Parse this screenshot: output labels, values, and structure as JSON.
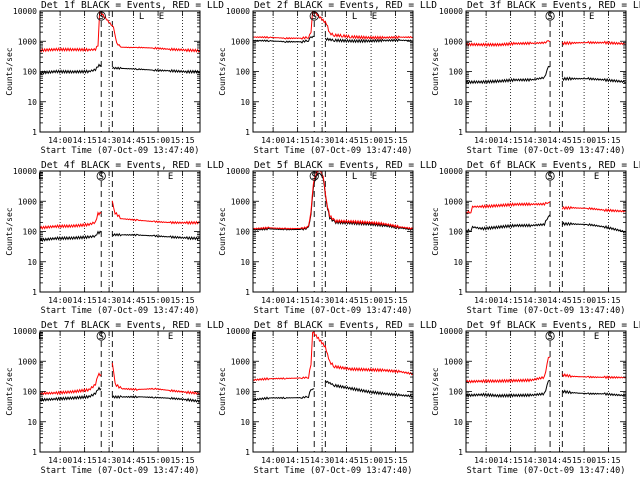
{
  "figure": {
    "ylabel": "Counts/sec",
    "xlabel": "Start Time (07-Oct-09 13:47:40)",
    "x_tick_labels": [
      "14:00",
      "14:15",
      "14:30",
      "14:45",
      "15:00",
      "15:15"
    ],
    "y_tick_labels": [
      "1",
      "10",
      "100",
      "1000",
      "10000"
    ],
    "colors": {
      "events": "#000000",
      "lld": "#ff0000",
      "axes": "#000000",
      "background": "#ffffff"
    }
  },
  "chart_data": [
    {
      "type": "line",
      "title": "Det 1f BLACK = Events, RED = LLD",
      "x_unit": "minutes after 13:47:40",
      "yscale": "log",
      "xlim": [
        0,
        98
      ],
      "ylim": [
        1,
        10000
      ],
      "gap": [
        37.5,
        44.3
      ],
      "markers": [
        "S",
        "L",
        "E"
      ],
      "marker_x": [
        37.5,
        62.2,
        74.4
      ],
      "vlines_dotted": [
        12.33,
        27.33,
        42.33,
        57.33,
        72.33,
        87.33
      ],
      "vlines_dashed": [
        37.5,
        44.3
      ],
      "series": [
        {
          "name": "Events",
          "color": "#000000",
          "x": [
            0,
            10,
            20,
            30,
            34,
            35.5,
            37.5,
            44.3,
            50,
            60,
            70,
            80,
            90,
            98
          ],
          "y": [
            90,
            95,
            92,
            100,
            120,
            160,
            170,
            125,
            120,
            118,
            115,
            112,
            100,
            95
          ]
        },
        {
          "name": "LLD",
          "color": "#ff0000",
          "x": [
            0,
            10,
            20,
            30,
            34,
            35.5,
            36.5,
            39,
            41,
            43,
            45,
            47,
            50,
            55,
            60,
            70,
            80,
            90,
            98
          ],
          "y": [
            500,
            510,
            505,
            520,
            560,
            800,
            10000,
            10000,
            10000,
            9000,
            3000,
            900,
            650,
            600,
            590,
            580,
            560,
            540,
            500
          ]
        }
      ]
    },
    {
      "type": "line",
      "title": "Det 2f BLACK = Events, RED = LLD",
      "x_unit": "minutes after 13:47:40",
      "yscale": "log",
      "xlim": [
        0,
        98
      ],
      "ylim": [
        1,
        10000
      ],
      "gap": [
        37.5,
        44.3
      ],
      "markers": [
        "S",
        "L",
        "E"
      ],
      "marker_x": [
        37.5,
        62.2,
        74.4
      ],
      "vlines_dotted": [
        12.33,
        27.33,
        42.33,
        57.33,
        72.33,
        87.33
      ],
      "vlines_dashed": [
        37.5,
        44.3
      ],
      "series": [
        {
          "name": "Events",
          "color": "#000000",
          "x": [
            0,
            10,
            20,
            30,
            34,
            35.5,
            37.5,
            44.3,
            50,
            60,
            70,
            80,
            90,
            98
          ],
          "y": [
            1000,
            1010,
            1000,
            1020,
            1100,
            1300,
            1350,
            1150,
            1100,
            1080,
            1060,
            1040,
            1020,
            1000
          ]
        },
        {
          "name": "LLD",
          "color": "#ff0000",
          "x": [
            0,
            10,
            20,
            30,
            34,
            35.5,
            36.5,
            39,
            41,
            43,
            45,
            47,
            50,
            55,
            60,
            70,
            80,
            90,
            98
          ],
          "y": [
            1300,
            1320,
            1300,
            1350,
            1400,
            1800,
            10000,
            10000,
            10000,
            9000,
            4000,
            1800,
            1500,
            1450,
            1420,
            1400,
            1380,
            1350,
            1300
          ]
        }
      ]
    },
    {
      "type": "line",
      "title": "Det 3f BLACK = Events, RED = LLD",
      "x_unit": "minutes after 13:47:40",
      "yscale": "log",
      "xlim": [
        0,
        98
      ],
      "ylim": [
        1,
        10000
      ],
      "gap": [
        51.5,
        59.0
      ],
      "markers": [
        "S",
        "E"
      ],
      "marker_x": [
        51.5,
        77.0
      ],
      "vlines_dotted": [
        12.33,
        27.33,
        42.33,
        57.33,
        72.33,
        87.33
      ],
      "vlines_dashed": [
        51.5,
        59.0
      ],
      "series": [
        {
          "name": "Events",
          "color": "#000000",
          "x": [
            0,
            10,
            20,
            30,
            40,
            48,
            50.5,
            51.5,
            59,
            65,
            75,
            85,
            98
          ],
          "y": [
            45,
            48,
            50,
            52,
            50,
            60,
            140,
            150,
            60,
            58,
            55,
            50,
            45
          ]
        },
        {
          "name": "LLD",
          "color": "#ff0000",
          "x": [
            0,
            10,
            20,
            30,
            40,
            48,
            50.5,
            51.5,
            59,
            65,
            75,
            85,
            98
          ],
          "y": [
            800,
            820,
            800,
            830,
            810,
            850,
            1000,
            1000,
            900,
            880,
            860,
            850,
            820
          ]
        }
      ]
    },
    {
      "type": "line",
      "title": "Det 4f BLACK = Events, RED = LLD",
      "x_unit": "minutes after 13:47:40",
      "yscale": "log",
      "xlim": [
        0,
        98
      ],
      "ylim": [
        1,
        10000
      ],
      "gap": [
        37.5,
        44.3
      ],
      "markers": [
        "E",
        "S",
        "E"
      ],
      "marker_x": [
        0.5,
        37.5,
        80.0
      ],
      "vlines_dotted": [
        12.33,
        27.33,
        42.33,
        57.33,
        72.33,
        87.33
      ],
      "vlines_dashed": [
        37.5,
        44.3
      ],
      "series": [
        {
          "name": "Events",
          "color": "#000000",
          "x": [
            0,
            10,
            20,
            30,
            34,
            35.5,
            37.5,
            44.3,
            50,
            60,
            70,
            80,
            90,
            98
          ],
          "y": [
            55,
            60,
            58,
            62,
            70,
            95,
            100,
            80,
            75,
            72,
            70,
            68,
            65,
            60
          ]
        },
        {
          "name": "LLD",
          "color": "#ff0000",
          "x": [
            0,
            10,
            20,
            30,
            34,
            35.5,
            37.5,
            44.3,
            46,
            50,
            60,
            70,
            80,
            90,
            98
          ],
          "y": [
            140,
            150,
            145,
            160,
            200,
            400,
            420,
            1000,
            400,
            250,
            230,
            220,
            210,
            200,
            190
          ]
        }
      ]
    },
    {
      "type": "line",
      "title": "Det 5f BLACK = Events, RED = LLD",
      "x_unit": "minutes after 13:47:40",
      "yscale": "log",
      "xlim": [
        0,
        98
      ],
      "ylim": [
        1,
        10000
      ],
      "gap": null,
      "markers": [
        "S",
        "L",
        "E"
      ],
      "marker_x": [
        37.5,
        62.2,
        74.4
      ],
      "vlines_dotted": [
        12.33,
        27.33,
        42.33,
        57.33,
        72.33,
        87.33
      ],
      "vlines_dashed": [
        37.5,
        44.3
      ],
      "series": [
        {
          "name": "Events",
          "color": "#000000",
          "x": [
            0,
            10,
            20,
            30,
            34,
            35.5,
            37,
            39,
            41,
            43,
            45,
            47,
            50,
            60,
            70,
            80,
            90,
            98
          ],
          "y": [
            110,
            115,
            112,
            120,
            140,
            400,
            3000,
            7000,
            8000,
            6000,
            900,
            300,
            200,
            180,
            170,
            160,
            140,
            120
          ]
        },
        {
          "name": "LLD",
          "color": "#ff0000",
          "x": [
            0,
            10,
            20,
            30,
            34,
            35.5,
            37,
            39,
            41,
            43,
            45,
            47,
            50,
            60,
            70,
            80,
            90,
            98
          ],
          "y": [
            120,
            125,
            120,
            130,
            150,
            500,
            4000,
            9000,
            10000,
            7000,
            1000,
            350,
            220,
            200,
            190,
            180,
            150,
            130
          ]
        }
      ]
    },
    {
      "type": "line",
      "title": "Det 6f BLACK = Events, RED = LLD",
      "x_unit": "minutes after 13:47:40",
      "yscale": "log",
      "xlim": [
        0,
        98
      ],
      "ylim": [
        1,
        10000
      ],
      "gap": [
        51.5,
        59.0
      ],
      "markers": [
        "S",
        "E"
      ],
      "marker_x": [
        51.5,
        80.0
      ],
      "vlines_dotted": [
        12.33,
        27.33,
        42.33,
        57.33,
        72.33,
        87.33
      ],
      "vlines_dashed": [
        51.5,
        59.0
      ],
      "series": [
        {
          "name": "Events",
          "color": "#000000",
          "x": [
            0,
            3,
            4,
            10,
            20,
            30,
            40,
            48,
            50.5,
            51.5,
            59,
            65,
            75,
            85,
            98
          ],
          "y": [
            100,
            110,
            150,
            130,
            140,
            150,
            150,
            170,
            350,
            380,
            180,
            170,
            160,
            140,
            100
          ]
        },
        {
          "name": "LLD",
          "color": "#ff0000",
          "x": [
            0,
            3,
            4,
            10,
            20,
            30,
            40,
            48,
            50.5,
            51.5,
            59,
            65,
            75,
            85,
            98
          ],
          "y": [
            400,
            450,
            700,
            700,
            720,
            750,
            760,
            800,
            1000,
            1000,
            600,
            580,
            550,
            500,
            480
          ]
        }
      ]
    },
    {
      "type": "line",
      "title": "Det 7f BLACK = Events, RED = LLD",
      "x_unit": "minutes after 13:47:40",
      "yscale": "log",
      "xlim": [
        0,
        98
      ],
      "ylim": [
        1,
        10000
      ],
      "gap": [
        37.5,
        44.3
      ],
      "markers": [
        "E",
        "S",
        "E"
      ],
      "marker_x": [
        0.5,
        37.5,
        80.0
      ],
      "vlines_dotted": [
        12.33,
        27.33,
        42.33,
        57.33,
        72.33,
        87.33
      ],
      "vlines_dashed": [
        37.5,
        44.3
      ],
      "series": [
        {
          "name": "Events",
          "color": "#000000",
          "x": [
            0,
            10,
            20,
            30,
            34,
            35.5,
            37.5,
            44.3,
            50,
            60,
            70,
            80,
            90,
            98
          ],
          "y": [
            55,
            60,
            62,
            65,
            80,
            120,
            130,
            70,
            68,
            65,
            60,
            58,
            55,
            50
          ]
        },
        {
          "name": "LLD",
          "color": "#ff0000",
          "x": [
            0,
            10,
            20,
            30,
            34,
            35.5,
            37.5,
            44.3,
            46,
            50,
            60,
            70,
            80,
            90,
            98
          ],
          "y": [
            90,
            95,
            100,
            110,
            160,
            350,
            380,
            1000,
            180,
            120,
            110,
            120,
            110,
            100,
            90
          ]
        }
      ]
    },
    {
      "type": "line",
      "title": "Det 8f BLACK = Events, RED = LLD",
      "x_unit": "minutes after 13:47:40",
      "yscale": "log",
      "xlim": [
        0,
        98
      ],
      "ylim": [
        1,
        10000
      ],
      "gap": [
        37.5,
        44.3
      ],
      "markers": [
        "E"
      ],
      "marker_x": [
        0.5
      ],
      "vlines_dotted": [
        12.33,
        27.33,
        42.33,
        57.33,
        72.33,
        87.33
      ],
      "vlines_dashed": [
        37.5,
        44.3
      ],
      "series": [
        {
          "name": "Events",
          "color": "#000000",
          "x": [
            0,
            10,
            20,
            30,
            34,
            35.5,
            37.5,
            44.3,
            50,
            60,
            70,
            80,
            90,
            98
          ],
          "y": [
            55,
            60,
            58,
            60,
            70,
            120,
            130,
            220,
            150,
            120,
            100,
            90,
            80,
            70
          ]
        },
        {
          "name": "LLD",
          "color": "#ff0000",
          "x": [
            0,
            10,
            20,
            30,
            34,
            35.5,
            36.5,
            38,
            40,
            42,
            44.3,
            47,
            50,
            60,
            70,
            80,
            90,
            98
          ],
          "y": [
            250,
            260,
            255,
            270,
            300,
            800,
            10000,
            10000,
            10000,
            10000,
            3000,
            1000,
            700,
            550,
            500,
            480,
            450,
            400
          ]
        }
      ]
    },
    {
      "type": "line",
      "title": "Det 9f BLACK = Events, RED = LLD",
      "x_unit": "minutes after 13:47:40",
      "yscale": "log",
      "xlim": [
        0,
        98
      ],
      "ylim": [
        1,
        10000
      ],
      "gap": [
        51.5,
        59.0
      ],
      "markers": [
        "S",
        "E"
      ],
      "marker_x": [
        51.5,
        80.0
      ],
      "vlines_dotted": [
        12.33,
        27.33,
        42.33,
        57.33,
        72.33,
        87.33
      ],
      "vlines_dashed": [
        51.5,
        59.0
      ],
      "series": [
        {
          "name": "Events",
          "color": "#000000",
          "x": [
            0,
            10,
            20,
            30,
            40,
            48,
            50.5,
            51.5,
            59,
            65,
            75,
            85,
            98
          ],
          "y": [
            70,
            75,
            72,
            78,
            80,
            85,
            200,
            220,
            100,
            95,
            90,
            85,
            70
          ]
        },
        {
          "name": "LLD",
          "color": "#ff0000",
          "x": [
            0,
            10,
            20,
            30,
            40,
            48,
            50.5,
            51.5,
            59,
            65,
            75,
            85,
            98
          ],
          "y": [
            200,
            210,
            220,
            240,
            250,
            300,
            1200,
            1300,
            350,
            330,
            320,
            300,
            280
          ]
        }
      ]
    }
  ]
}
